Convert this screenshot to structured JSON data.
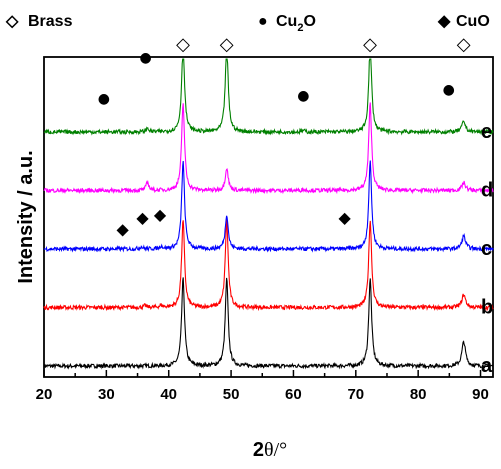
{
  "chart_data": {
    "type": "line",
    "xlabel_main": "2",
    "xlabel_theta": "θ/°",
    "ylabel": "Intensity / a.u.",
    "xlim": [
      20,
      92
    ],
    "x_ticks": [
      20,
      30,
      40,
      50,
      60,
      70,
      80,
      90
    ],
    "x_tick_labels": [
      "20",
      "30",
      "40",
      "50",
      "60",
      "70",
      "80",
      "90"
    ],
    "legend": [
      {
        "symbol": "open-diamond",
        "glyph": "◇",
        "label": "Brass"
      },
      {
        "symbol": "filled-circle",
        "glyph": "●",
        "label_main": "Cu",
        "label_sub": "2",
        "label_tail": "O"
      },
      {
        "symbol": "filled-diamond",
        "glyph": "◆",
        "label": "CuO"
      }
    ],
    "brass_peaks": [
      42.3,
      49.3,
      72.3,
      87.3
    ],
    "series": [
      {
        "name": "a",
        "color": "#000000",
        "baseline": 0.0,
        "peaks": [
          [
            42.3,
            100
          ],
          [
            49.3,
            100
          ],
          [
            72.3,
            100
          ],
          [
            87.3,
            28
          ]
        ]
      },
      {
        "name": "b",
        "color": "#ff0000",
        "baseline": 1.0,
        "peaks": [
          [
            36.2,
            2.0
          ],
          [
            38.8,
            2.2
          ],
          [
            42.3,
            100
          ],
          [
            49.3,
            100
          ],
          [
            72.3,
            100
          ],
          [
            87.3,
            15
          ]
        ]
      },
      {
        "name": "c",
        "color": "#0000ff",
        "baseline": 2.0,
        "peaks": [
          [
            35.6,
            2.5
          ],
          [
            38.8,
            3.0
          ],
          [
            42.3,
            100
          ],
          [
            49.3,
            40
          ],
          [
            72.3,
            100
          ],
          [
            87.3,
            15
          ]
        ]
      },
      {
        "name": "d",
        "color": "#ff00ff",
        "baseline": 3.0,
        "peaks": [
          [
            36.6,
            9.0
          ],
          [
            42.3,
            100
          ],
          [
            49.3,
            26
          ],
          [
            61.6,
            1.2
          ],
          [
            72.3,
            100
          ],
          [
            87.3,
            9.0
          ]
        ]
      },
      {
        "name": "e",
        "color": "#008000",
        "baseline": 4.0,
        "peaks": [
          [
            36.6,
            4.0
          ],
          [
            42.3,
            100
          ],
          [
            49.3,
            100
          ],
          [
            61.6,
            1.5
          ],
          [
            72.3,
            100
          ],
          [
            87.3,
            12
          ]
        ]
      }
    ],
    "markers": [
      {
        "symbol": "filled-circle",
        "glyph": "●",
        "x": 29.6,
        "level": 4.6
      },
      {
        "symbol": "filled-circle",
        "glyph": "●",
        "x": 36.3,
        "level": 5.3
      },
      {
        "symbol": "filled-circle",
        "glyph": "●",
        "x": 61.6,
        "level": 4.65
      },
      {
        "symbol": "filled-circle",
        "glyph": "●",
        "x": 84.9,
        "level": 4.75
      },
      {
        "symbol": "filled-diamond",
        "glyph": "◆",
        "x": 32.6,
        "level": 2.35
      },
      {
        "symbol": "filled-diamond",
        "glyph": "◆",
        "x": 35.8,
        "level": 2.55
      },
      {
        "symbol": "filled-diamond",
        "glyph": "◆",
        "x": 38.6,
        "level": 2.6
      },
      {
        "symbol": "filled-diamond",
        "glyph": "◆",
        "x": 68.2,
        "level": 2.55
      }
    ]
  }
}
